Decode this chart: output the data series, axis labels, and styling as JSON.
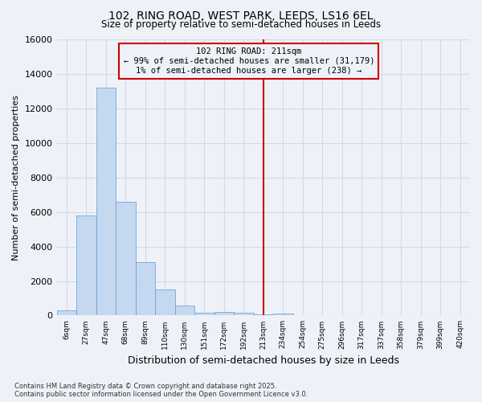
{
  "title": "102, RING ROAD, WEST PARK, LEEDS, LS16 6EL",
  "subtitle": "Size of property relative to semi-detached houses in Leeds",
  "xlabel": "Distribution of semi-detached houses by size in Leeds",
  "ylabel": "Number of semi-detached properties",
  "annotation_title": "102 RING ROAD: 211sqm",
  "annotation_line1": "← 99% of semi-detached houses are smaller (31,179)",
  "annotation_line2": "1% of semi-detached houses are larger (238) →",
  "footer_line1": "Contains HM Land Registry data © Crown copyright and database right 2025.",
  "footer_line2": "Contains public sector information licensed under the Open Government Licence v3.0.",
  "bar_labels": [
    "6sqm",
    "27sqm",
    "47sqm",
    "68sqm",
    "89sqm",
    "110sqm",
    "130sqm",
    "151sqm",
    "172sqm",
    "192sqm",
    "213sqm",
    "234sqm",
    "254sqm",
    "275sqm",
    "296sqm",
    "317sqm",
    "337sqm",
    "358sqm",
    "379sqm",
    "399sqm",
    "420sqm"
  ],
  "bar_values": [
    300,
    5800,
    13200,
    6600,
    3100,
    1500,
    600,
    150,
    200,
    150,
    50,
    100,
    0,
    0,
    0,
    0,
    0,
    0,
    0,
    0,
    0
  ],
  "vline_index": 10,
  "ylim": [
    0,
    16000
  ],
  "bar_color": "#c5d8f0",
  "bar_edge_color": "#5b9bd5",
  "vline_color": "#cc0000",
  "annotation_box_edge_color": "#cc0000",
  "background_color": "#eef2f8",
  "grid_color": "#d0dae8",
  "yticks": [
    0,
    2000,
    4000,
    6000,
    8000,
    10000,
    12000,
    14000,
    16000
  ]
}
